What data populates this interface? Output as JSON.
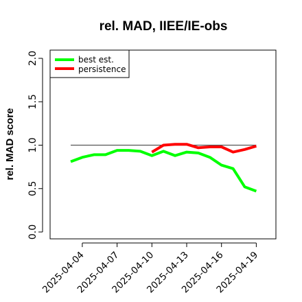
{
  "chart_data": {
    "type": "line",
    "title": "rel. MAD, IIEE/IE-obs",
    "xlabel": "",
    "ylabel": "rel. MAD score",
    "ylim": [
      0.0,
      2.0
    ],
    "yticks": [
      "0.0",
      "0.5",
      "1.0",
      "1.5",
      "2.0"
    ],
    "x": [
      "2025-04-03",
      "2025-04-04",
      "2025-04-05",
      "2025-04-06",
      "2025-04-07",
      "2025-04-08",
      "2025-04-09",
      "2025-04-10",
      "2025-04-11",
      "2025-04-12",
      "2025-04-13",
      "2025-04-14",
      "2025-04-15",
      "2025-04-16",
      "2025-04-17",
      "2025-04-18",
      "2025-04-19"
    ],
    "xticks": [
      "2025-04-04",
      "2025-04-07",
      "2025-04-10",
      "2025-04-13",
      "2025-04-16",
      "2025-04-19"
    ],
    "reference_line": 1.0,
    "grid": false,
    "legend_position": "top-left",
    "series": [
      {
        "name": "best est.",
        "color": "#00ff00",
        "values": [
          0.81,
          0.86,
          0.89,
          0.89,
          0.94,
          0.94,
          0.93,
          0.88,
          0.93,
          0.88,
          0.92,
          0.91,
          0.86,
          0.77,
          0.73,
          0.52,
          0.47
        ]
      },
      {
        "name": "persistence",
        "color": "#ff0000",
        "values": [
          null,
          null,
          null,
          null,
          null,
          null,
          null,
          0.92,
          1.0,
          1.01,
          1.01,
          0.97,
          0.98,
          0.98,
          0.92,
          0.95,
          0.99
        ]
      }
    ]
  }
}
